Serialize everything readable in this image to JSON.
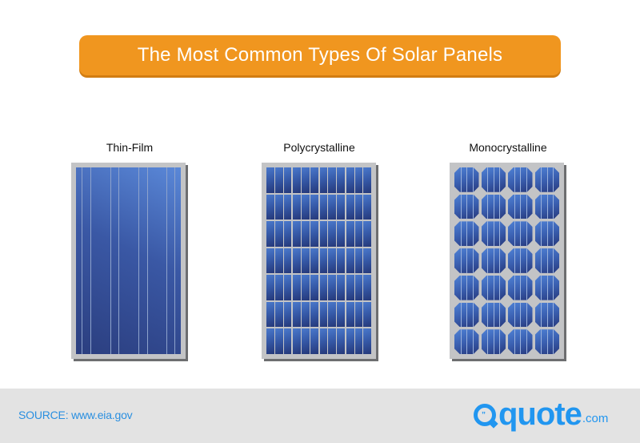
{
  "title": "The Most Common Types Of Solar Panels",
  "panels": [
    {
      "label": "Thin-Film",
      "type": "thin-film"
    },
    {
      "label": "Polycrystalline",
      "type": "polycrystalline",
      "grid": {
        "columns": 4,
        "rows": 7,
        "strips_per_cell": 3
      }
    },
    {
      "label": "Monocrystalline",
      "type": "monocrystalline",
      "grid": {
        "columns": 4,
        "rows": 7,
        "lines_per_cell": 3
      }
    }
  ],
  "footer": {
    "source": "SOURCE: www.eia.gov",
    "logo": {
      "quote_mark": "”",
      "word": "quote",
      "suffix": ".com"
    }
  },
  "colors": {
    "title_bg": "#f0961f",
    "panel_frame": "#c3c4c6",
    "cell_blue": "#3a58a5",
    "footer_bg": "#e3e3e3",
    "brand_blue": "#2196f0"
  }
}
